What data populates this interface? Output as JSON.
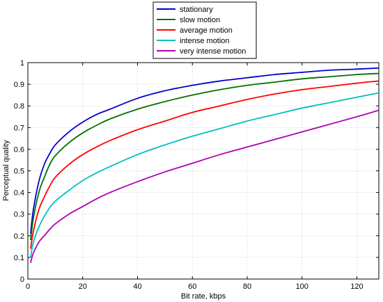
{
  "chart_data": {
    "type": "line",
    "title": "",
    "xlabel": "Bit rate, kbps",
    "ylabel": "Perceptual quality",
    "xlim": [
      0,
      128
    ],
    "ylim": [
      0,
      1
    ],
    "xticks": [
      0,
      20,
      40,
      60,
      80,
      100,
      120
    ],
    "yticks": [
      0,
      0.1,
      0.2,
      0.3,
      0.4,
      0.5,
      0.6,
      0.7,
      0.8,
      0.9,
      1
    ],
    "grid": true,
    "legend_position": "top-center (above plot)",
    "x": [
      1,
      2,
      4,
      6,
      8,
      10,
      15,
      20,
      25,
      30,
      40,
      50,
      60,
      70,
      80,
      90,
      100,
      110,
      120,
      128
    ],
    "series": [
      {
        "name": "stationary",
        "color": "#0000cc",
        "values": [
          0.21,
          0.32,
          0.45,
          0.53,
          0.58,
          0.62,
          0.68,
          0.725,
          0.76,
          0.785,
          0.835,
          0.87,
          0.895,
          0.915,
          0.93,
          0.945,
          0.955,
          0.965,
          0.97,
          0.975
        ]
      },
      {
        "name": "slow motion",
        "color": "#007000",
        "values": [
          0.18,
          0.28,
          0.4,
          0.47,
          0.53,
          0.57,
          0.63,
          0.675,
          0.71,
          0.74,
          0.785,
          0.82,
          0.85,
          0.875,
          0.895,
          0.91,
          0.925,
          0.935,
          0.945,
          0.95
        ]
      },
      {
        "name": "average motion",
        "color": "#ff0000",
        "values": [
          0.14,
          0.22,
          0.32,
          0.38,
          0.43,
          0.47,
          0.53,
          0.575,
          0.61,
          0.64,
          0.69,
          0.73,
          0.77,
          0.8,
          0.83,
          0.855,
          0.875,
          0.89,
          0.905,
          0.915
        ]
      },
      {
        "name": "intense motion",
        "color": "#00c0c0",
        "values": [
          0.1,
          0.17,
          0.24,
          0.29,
          0.33,
          0.36,
          0.41,
          0.455,
          0.49,
          0.52,
          0.575,
          0.62,
          0.66,
          0.695,
          0.73,
          0.76,
          0.79,
          0.815,
          0.84,
          0.86
        ]
      },
      {
        "name": "very intense motion",
        "color": "#b000b0",
        "values": [
          0.075,
          0.12,
          0.17,
          0.2,
          0.23,
          0.255,
          0.3,
          0.335,
          0.37,
          0.4,
          0.45,
          0.495,
          0.535,
          0.575,
          0.61,
          0.645,
          0.68,
          0.715,
          0.75,
          0.78
        ]
      }
    ]
  }
}
